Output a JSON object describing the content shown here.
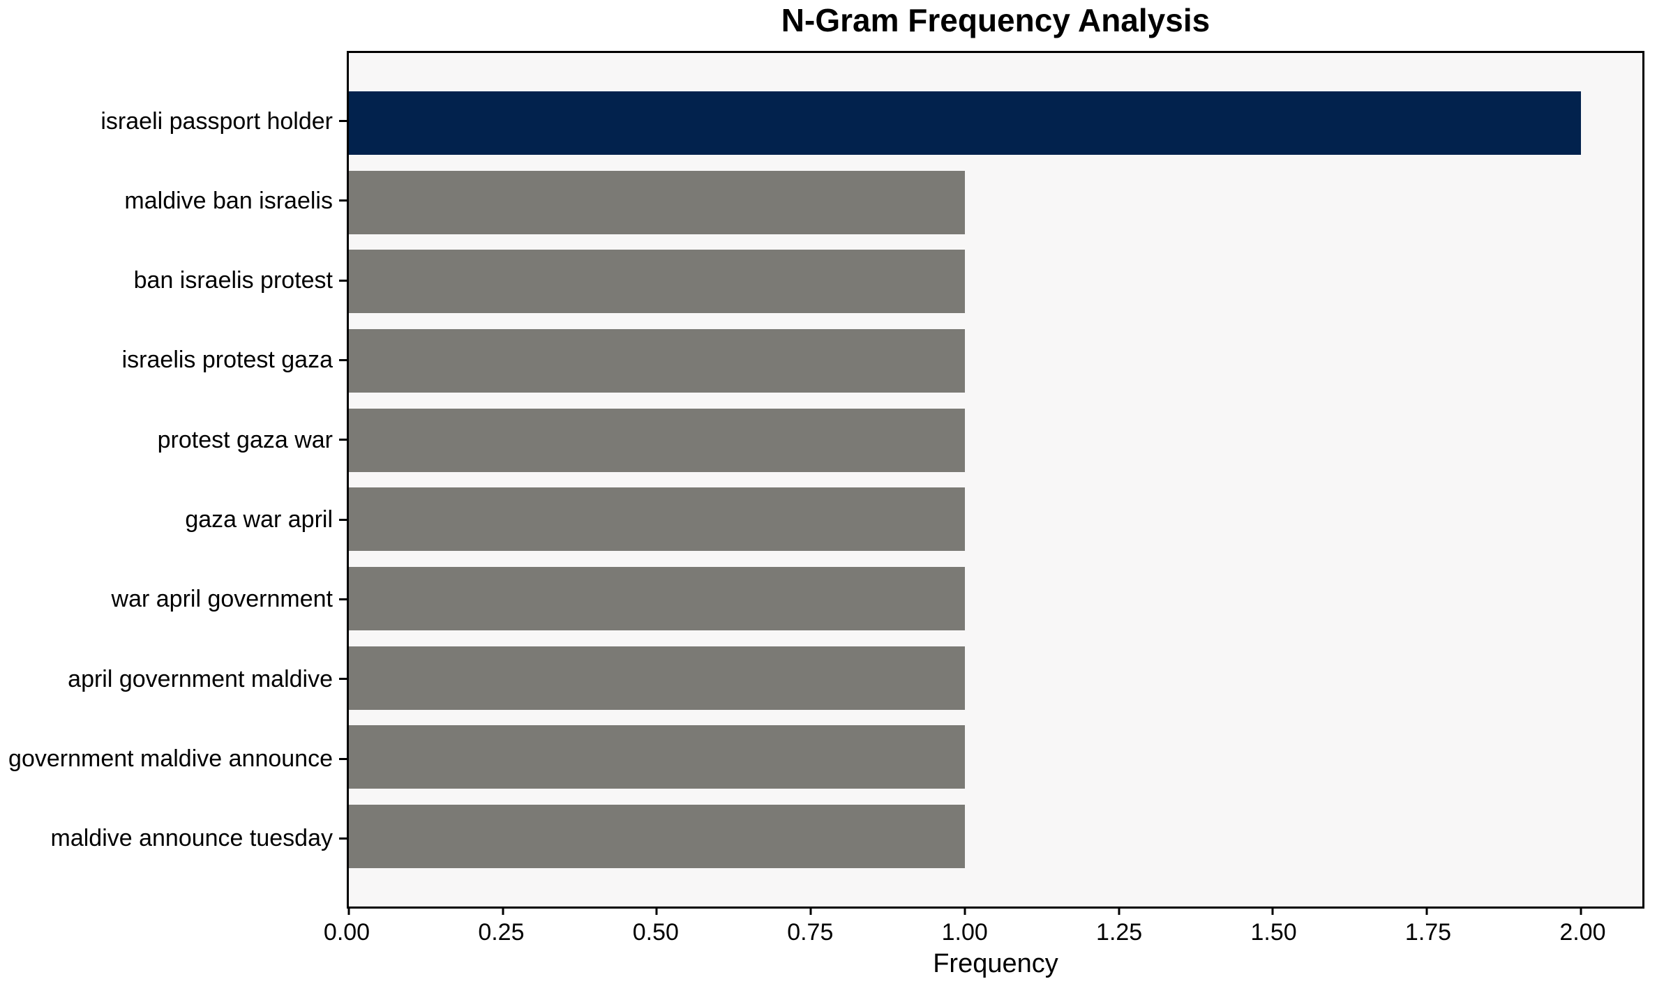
{
  "chart_data": {
    "type": "bar",
    "orientation": "horizontal",
    "title": "N-Gram Frequency Analysis",
    "xlabel": "Frequency",
    "ylabel": "",
    "categories": [
      "israeli passport holder",
      "maldive ban israelis",
      "ban israelis protest",
      "israelis protest gaza",
      "protest gaza war",
      "gaza war april",
      "war april government",
      "april government maldive",
      "government maldive announce",
      "maldive announce tuesday"
    ],
    "values": [
      2.0,
      1.0,
      1.0,
      1.0,
      1.0,
      1.0,
      1.0,
      1.0,
      1.0,
      1.0
    ],
    "x_ticks": [
      {
        "label": "0.00",
        "value": 0.0
      },
      {
        "label": "0.25",
        "value": 0.25
      },
      {
        "label": "0.50",
        "value": 0.5
      },
      {
        "label": "0.75",
        "value": 0.75
      },
      {
        "label": "1.00",
        "value": 1.0
      },
      {
        "label": "1.25",
        "value": 1.25
      },
      {
        "label": "1.50",
        "value": 1.5
      },
      {
        "label": "1.75",
        "value": 1.75
      },
      {
        "label": "2.00",
        "value": 2.0
      }
    ],
    "xlim": [
      0,
      2.1
    ],
    "grid": false,
    "legend": "none",
    "colors": {
      "highlight_bar": "#02224D",
      "bar": "#7B7A75",
      "plot_background": "#F8F7F7",
      "figure_background": "#FFFFFF",
      "axis": "#000000",
      "text": "#000000"
    }
  }
}
